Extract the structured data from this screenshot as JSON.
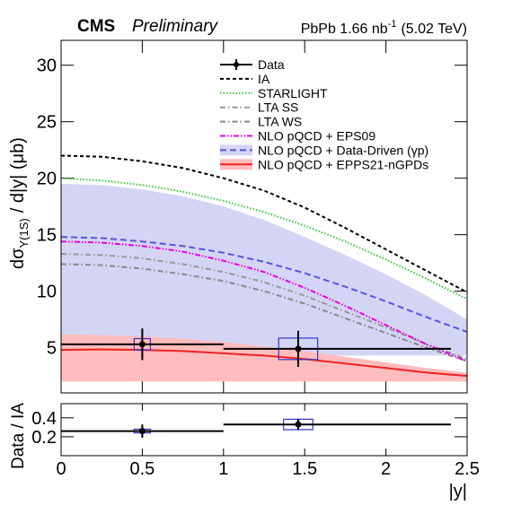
{
  "chart_data": [
    {
      "type": "line",
      "experiment": "CMS",
      "status": "Preliminary",
      "title": [
        "PbPb 1.66 nb",
        "-1",
        "(5.02 TeV)"
      ],
      "ylabel": [
        "dσ",
        "Υ(1S)",
        "/ d|y|  (μb)"
      ],
      "xlim": [
        0,
        2.5
      ],
      "xticks": [
        0,
        0.5,
        1,
        1.5,
        2,
        2.5
      ],
      "ylim": [
        1,
        32.2
      ],
      "yticks": [
        5,
        10,
        15,
        20,
        25,
        30
      ],
      "x": [
        0,
        0.25,
        0.5,
        0.75,
        1,
        1.25,
        1.5,
        1.75,
        2,
        2.25,
        2.5
      ],
      "series": [
        {
          "name": "IA",
          "color": "#000000",
          "dash": "4,3",
          "values": [
            22,
            21.9,
            21.5,
            20.9,
            20.0,
            18.9,
            17.4,
            15.6,
            13.7,
            11.8,
            9.9
          ]
        },
        {
          "name": "STARLIGHT",
          "color": "#33cc33",
          "dash": "1.5,2",
          "values": [
            20,
            19.8,
            19.4,
            18.8,
            18.0,
            17.0,
            15.8,
            14.4,
            12.8,
            11.1,
            9.3
          ]
        },
        {
          "name": "LTA SS",
          "color": "#999999",
          "dash": "6,3,1.5,3",
          "values": [
            13.3,
            13.2,
            12.9,
            12.4,
            11.7,
            10.8,
            9.6,
            8.2,
            6.8,
            5.3,
            4.0
          ]
        },
        {
          "name": "LTA WS",
          "color": "#888888",
          "dash": "6,3,1.5,3",
          "values": [
            12.4,
            12.3,
            12.0,
            11.5,
            10.9,
            10.0,
            8.9,
            7.6,
            6.3,
            5.0,
            3.8
          ]
        },
        {
          "name": "NLO pQCD + EPS09",
          "color": "#e600e6",
          "dash": "6,2,1.5,2,1.5,2",
          "values": [
            14.4,
            14.3,
            14.0,
            13.5,
            12.7,
            11.7,
            10.3,
            8.7,
            7.0,
            5.3,
            3.8
          ]
        },
        {
          "name": "NLO pQCD + Data-Driven (γp)",
          "color": "#5555dd",
          "band_color": "#d4d4f4",
          "dash": "7,4",
          "values": [
            14.8,
            14.7,
            14.4,
            14.0,
            13.4,
            12.6,
            11.6,
            10.4,
            9.1,
            7.7,
            6.4
          ],
          "band_high": [
            19.5,
            19.4,
            19.0,
            18.4,
            17.5,
            16.3,
            14.8,
            13.2,
            11.5,
            9.6,
            7.5
          ],
          "band_low": [
            4.3,
            4.3,
            4.3,
            4.3,
            4.3,
            4.3,
            4.3,
            4.3,
            4.3,
            4.3,
            4.3
          ]
        },
        {
          "name": "NLO pQCD + EPPS21-nGPDs",
          "color": "#ee2222",
          "band_color": "#ffbcbc",
          "dash": "",
          "values": [
            4.8,
            4.85,
            4.8,
            4.7,
            4.5,
            4.3,
            4.0,
            3.6,
            3.2,
            2.8,
            2.5
          ],
          "band_high": [
            6.2,
            6.1,
            6.0,
            5.8,
            5.5,
            5.1,
            4.7,
            4.2,
            3.7,
            3.2,
            2.8
          ],
          "band_low": [
            2.0,
            2.0,
            2.0,
            2.0,
            2.0,
            2.0,
            2.0,
            2.0,
            2.0,
            2.0,
            2.0
          ]
        }
      ],
      "data": {
        "name": "Data",
        "color": "#000000",
        "syst_color": "#3333cc",
        "x": [
          0.5,
          1.46
        ],
        "values": [
          5.3,
          4.9
        ],
        "yerr": [
          1.4,
          1.6
        ],
        "xerr_low": [
          0.5,
          0.46
        ],
        "xerr_high": [
          0.5,
          0.94
        ],
        "syst": [
          0.5,
          0.95
        ],
        "syst_halfwidth": [
          0.05,
          0.12
        ]
      }
    },
    {
      "type": "ratio",
      "ylabel": "Data / IA",
      "xlabel": "|y|",
      "xlim": [
        0,
        2.5
      ],
      "xticks": [
        0,
        0.5,
        1,
        1.5,
        2,
        2.5
      ],
      "ylim": [
        0,
        0.55
      ],
      "yticks": [
        0.2,
        0.4
      ],
      "data": {
        "color": "#000000",
        "syst_color": "#3333cc",
        "x": [
          0.5,
          1.46
        ],
        "values": [
          0.26,
          0.33
        ],
        "yerr": [
          0.07,
          0.06
        ],
        "xerr_low": [
          0.5,
          0.46
        ],
        "xerr_high": [
          0.5,
          0.94
        ],
        "syst": [
          0.02,
          0.055
        ],
        "syst_halfwidth": [
          0.05,
          0.09
        ]
      }
    }
  ]
}
